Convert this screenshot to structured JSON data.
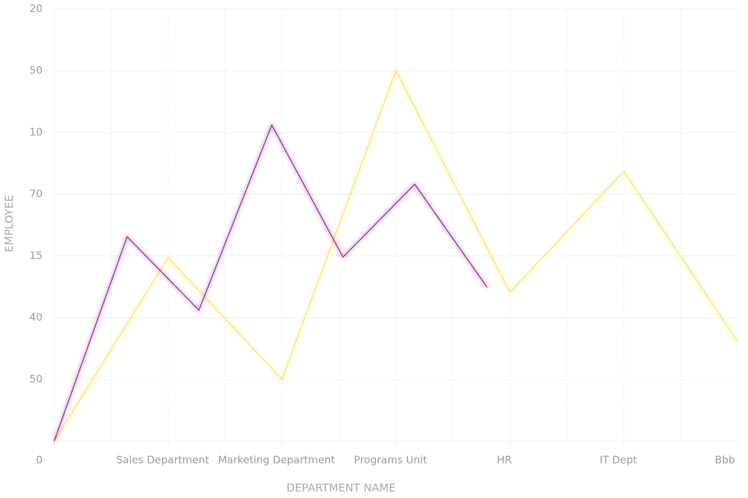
{
  "chart_data": {
    "type": "line",
    "x_label": "DEPARTMENT NAME",
    "y_label": "EMPLOYEE",
    "xlim": [
      0,
      12
    ],
    "ylim": [
      0,
      7
    ],
    "xticks": [
      {
        "value": 2,
        "label": "Sales Department"
      },
      {
        "value": 4,
        "label": "Marketing Department"
      },
      {
        "value": 6,
        "label": "Programs Unit"
      },
      {
        "value": 8,
        "label": "HR"
      },
      {
        "value": 10,
        "label": "IT Dept"
      },
      {
        "value": 12,
        "label": "Bbb"
      }
    ],
    "yticks": [
      0,
      {
        "value": 1,
        "label": "50"
      },
      {
        "value": 2,
        "label": "40"
      },
      {
        "value": 3,
        "label": "15"
      },
      {
        "value": 4,
        "label": "70"
      },
      {
        "value": 5,
        "label": "10"
      },
      {
        "value": 6,
        "label": "50"
      },
      {
        "value": 7,
        "label": "20"
      }
    ],
    "grid": true,
    "series": [
      {
        "color": "#ffe14d",
        "x": [
          0,
          2,
          4,
          6,
          8,
          10,
          12
        ],
        "values": [
          0,
          2.97,
          1,
          6,
          2.41,
          4.37,
          1.61
        ]
      },
      {
        "color": "#8b1a8f",
        "x": [
          0,
          1.28,
          2.54,
          3.82,
          5.07,
          6.33,
          7.6
        ],
        "values": [
          0,
          3.31,
          2.12,
          5.12,
          2.98,
          4.16,
          2.49
        ]
      }
    ]
  }
}
